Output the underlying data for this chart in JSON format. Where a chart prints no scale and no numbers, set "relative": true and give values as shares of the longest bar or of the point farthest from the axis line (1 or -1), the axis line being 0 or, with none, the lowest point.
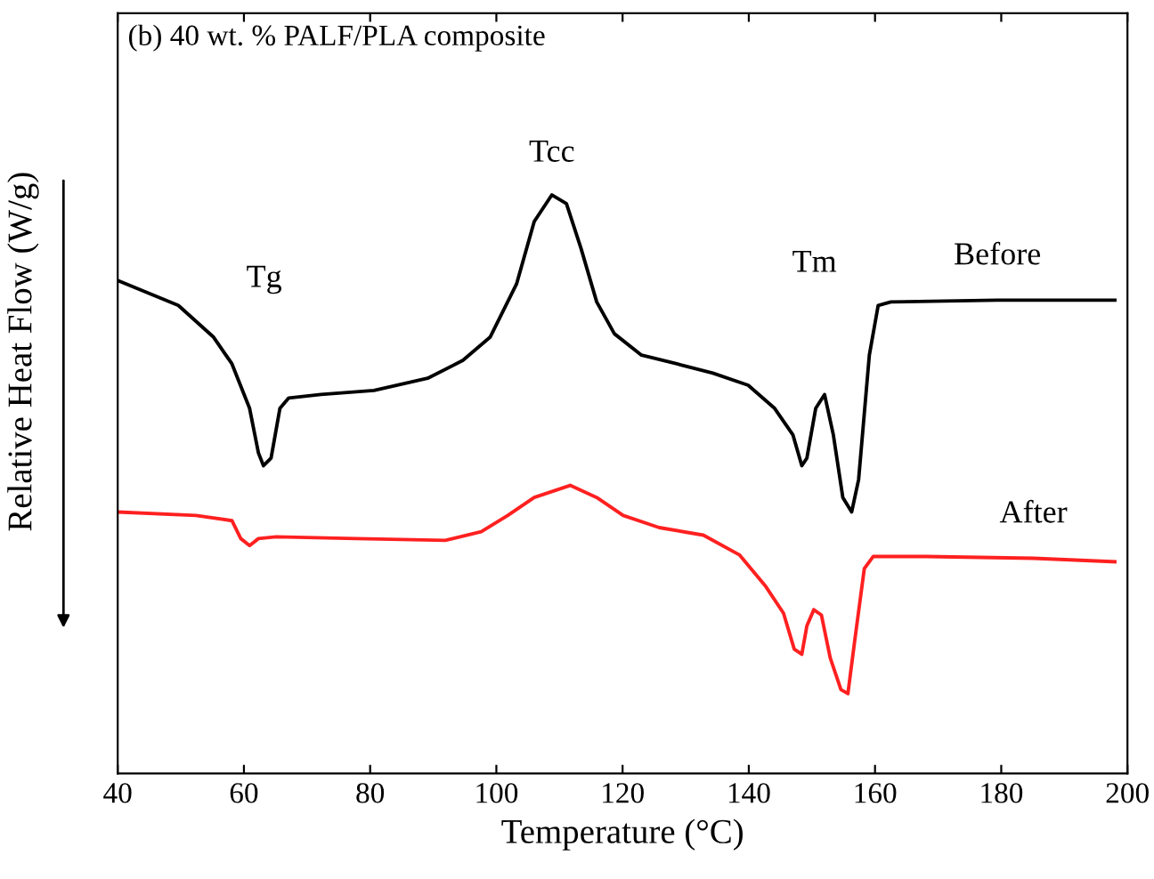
{
  "chart_data": {
    "type": "line",
    "title": "(b) 40 wt. % PALF/PLA composite",
    "xlabel": "Temperature (°C)",
    "ylabel": "Relative Heat Flow (W/g)",
    "relative": true,
    "xlim": [
      40,
      200
    ],
    "xticks": [
      40,
      60,
      80,
      100,
      120,
      140,
      160,
      180,
      200
    ],
    "tick_labels": "x",
    "grid": false,
    "legend": false,
    "marker": "none",
    "line_style": "solid",
    "annotations": [
      "Tg",
      "Tcc",
      "Tm"
    ],
    "series": [
      {
        "name": "Before",
        "color": "#000000",
        "x": [
          40.0,
          49.6,
          55.2,
          58.1,
          60.9,
          62.3,
          63.1,
          64.3,
          65.7,
          67.1,
          72.2,
          80.6,
          89.1,
          94.7,
          99.0,
          103.2,
          106.0,
          108.8,
          111.1,
          113.4,
          115.9,
          118.7,
          123.0,
          128.6,
          134.3,
          139.9,
          144.1,
          147.0,
          148.4,
          149.2,
          150.6,
          152.0,
          153.4,
          154.9,
          156.3,
          157.4,
          159.1,
          160.5,
          162.5,
          179.4,
          198.0
        ],
        "values": [
          0.852,
          0.809,
          0.754,
          0.708,
          0.631,
          0.554,
          0.532,
          0.545,
          0.631,
          0.649,
          0.655,
          0.662,
          0.683,
          0.714,
          0.754,
          0.846,
          0.954,
          1.0,
          0.985,
          0.908,
          0.815,
          0.76,
          0.723,
          0.708,
          0.692,
          0.671,
          0.631,
          0.585,
          0.532,
          0.545,
          0.631,
          0.655,
          0.585,
          0.477,
          0.452,
          0.508,
          0.723,
          0.809,
          0.815,
          0.818,
          0.818
        ]
      },
      {
        "name": "After",
        "color": "#ff2020",
        "x": [
          40.0,
          52.4,
          58.1,
          59.5,
          60.9,
          62.3,
          65.1,
          77.8,
          91.9,
          97.6,
          101.8,
          106.0,
          111.7,
          115.9,
          120.1,
          125.8,
          132.8,
          138.5,
          142.7,
          145.5,
          147.2,
          148.4,
          149.2,
          150.3,
          151.5,
          152.9,
          154.6,
          155.7,
          156.8,
          158.3,
          159.7,
          168.1,
          185.1,
          198.0
        ],
        "values": [
          0.452,
          0.446,
          0.437,
          0.406,
          0.394,
          0.406,
          0.409,
          0.406,
          0.403,
          0.418,
          0.446,
          0.477,
          0.498,
          0.477,
          0.446,
          0.425,
          0.412,
          0.378,
          0.323,
          0.277,
          0.215,
          0.206,
          0.255,
          0.283,
          0.274,
          0.2,
          0.145,
          0.138,
          0.231,
          0.354,
          0.375,
          0.375,
          0.372,
          0.366
        ]
      }
    ]
  }
}
